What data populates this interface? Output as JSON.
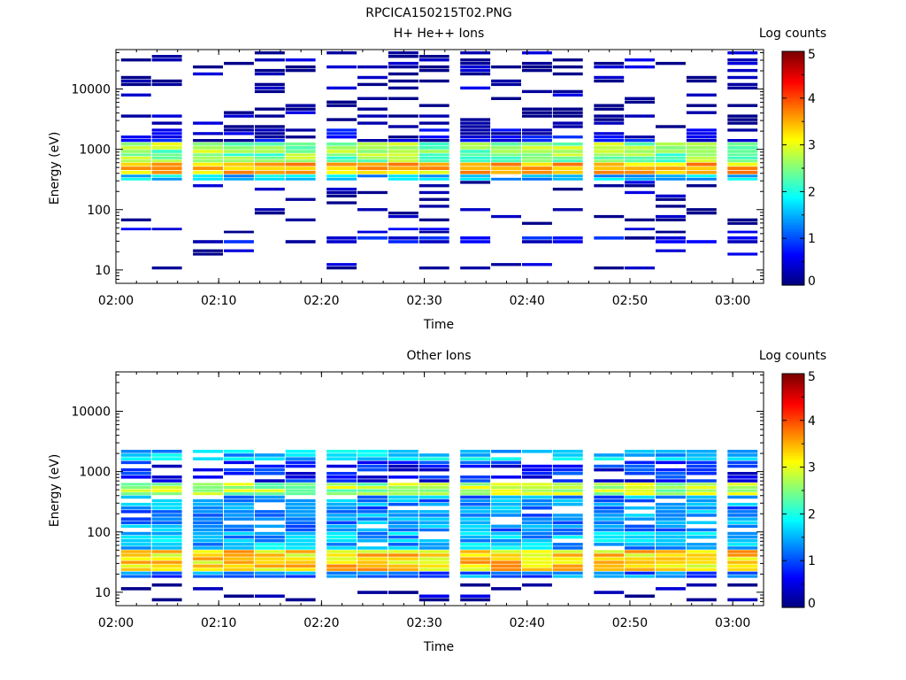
{
  "figure_title": "RPCICA150215T02.PNG",
  "chart_data": [
    {
      "type": "heatmap",
      "title": "H+ He++ Ions",
      "xlabel": "Time",
      "ylabel": "Energy (eV)",
      "x_ticks": [
        "02:00",
        "02:10",
        "02:20",
        "02:30",
        "02:40",
        "02:50",
        "03:00"
      ],
      "x_range": [
        "02:00",
        "03:03"
      ],
      "y_ticks": [
        10,
        100,
        1000,
        10000
      ],
      "y_tick_labels": [
        "10",
        "100",
        "1000",
        "10000"
      ],
      "y_range": [
        6,
        45000
      ],
      "y_scale": "log",
      "colorbar": {
        "label": "Log counts",
        "ticks": [
          "0",
          "1",
          "2",
          "3",
          "4",
          "5"
        ],
        "range": [
          0,
          5
        ],
        "colormap": "rainbow"
      },
      "time_columns": [
        "02:02",
        "02:05",
        "02:09",
        "02:12",
        "02:15",
        "02:18",
        "02:22",
        "02:25",
        "02:28",
        "02:31",
        "02:35",
        "02:38",
        "02:41",
        "02:44",
        "02:48",
        "02:51",
        "02:54",
        "02:57",
        "03:01"
      ],
      "profile": [
        {
          "energy_range_eV": [
            17,
            22
          ],
          "log_counts": 0.3,
          "probability": 0.15
        },
        {
          "energy_range_eV": [
            10,
            13
          ],
          "log_counts": 0.1,
          "probability": 0.25
        },
        {
          "energy_range_eV": [
            27,
            36
          ],
          "log_counts": 0.5,
          "probability": 0.6
        },
        {
          "energy_range_eV": [
            40,
            50
          ],
          "log_counts": 0.3,
          "probability": 0.2
        },
        {
          "energy_range_eV": [
            55,
            300
          ],
          "log_counts": 0.1,
          "probability": 0.18
        },
        {
          "energy_range_eV": [
            300,
            380
          ],
          "log_counts": 1.6,
          "probability": 0.95
        },
        {
          "energy_range_eV": [
            380,
            600
          ],
          "log_counts": 3.4,
          "probability": 1.0
        },
        {
          "energy_range_eV": [
            600,
            850
          ],
          "log_counts": 2.5,
          "probability": 1.0
        },
        {
          "energy_range_eV": [
            850,
            1300
          ],
          "log_counts": 2.6,
          "probability": 1.0
        },
        {
          "energy_range_eV": [
            1300,
            2200
          ],
          "log_counts": 0.5,
          "probability": 0.7
        },
        {
          "energy_range_eV": [
            2200,
            42000
          ],
          "log_counts": 0.1,
          "probability": 0.28
        }
      ]
    },
    {
      "type": "heatmap",
      "title": "Other Ions",
      "xlabel": "Time",
      "ylabel": "Energy (eV)",
      "x_ticks": [
        "02:00",
        "02:10",
        "02:20",
        "02:30",
        "02:40",
        "02:50",
        "03:00"
      ],
      "x_range": [
        "02:00",
        "03:03"
      ],
      "y_ticks": [
        10,
        100,
        1000,
        10000
      ],
      "y_tick_labels": [
        "10",
        "100",
        "1000",
        "10000"
      ],
      "y_range": [
        6,
        45000
      ],
      "y_scale": "log",
      "colorbar": {
        "label": "Log counts",
        "ticks": [
          "0",
          "1",
          "2",
          "3",
          "4",
          "5"
        ],
        "range": [
          0,
          5
        ],
        "colormap": "rainbow"
      },
      "time_columns": [
        "02:02",
        "02:05",
        "02:09",
        "02:12",
        "02:15",
        "02:18",
        "02:22",
        "02:25",
        "02:28",
        "02:31",
        "02:35",
        "02:38",
        "02:41",
        "02:44",
        "02:48",
        "02:51",
        "02:54",
        "02:57",
        "03:01"
      ],
      "profile": [
        {
          "energy_range_eV": [
            6,
            14
          ],
          "log_counts": 0.1,
          "probability": 0.2
        },
        {
          "energy_range_eV": [
            17,
            22
          ],
          "log_counts": 1.2,
          "probability": 1.0
        },
        {
          "energy_range_eV": [
            22,
            50
          ],
          "log_counts": 3.3,
          "probability": 1.0
        },
        {
          "energy_range_eV": [
            50,
            100
          ],
          "log_counts": 1.5,
          "probability": 0.95
        },
        {
          "energy_range_eV": [
            100,
            400
          ],
          "log_counts": 1.3,
          "probability": 0.85
        },
        {
          "energy_range_eV": [
            400,
            650
          ],
          "log_counts": 2.7,
          "probability": 1.0
        },
        {
          "energy_range_eV": [
            650,
            1500
          ],
          "log_counts": 0.7,
          "probability": 0.6
        },
        {
          "energy_range_eV": [
            1500,
            2300
          ],
          "log_counts": 1.6,
          "probability": 0.85
        }
      ]
    }
  ]
}
